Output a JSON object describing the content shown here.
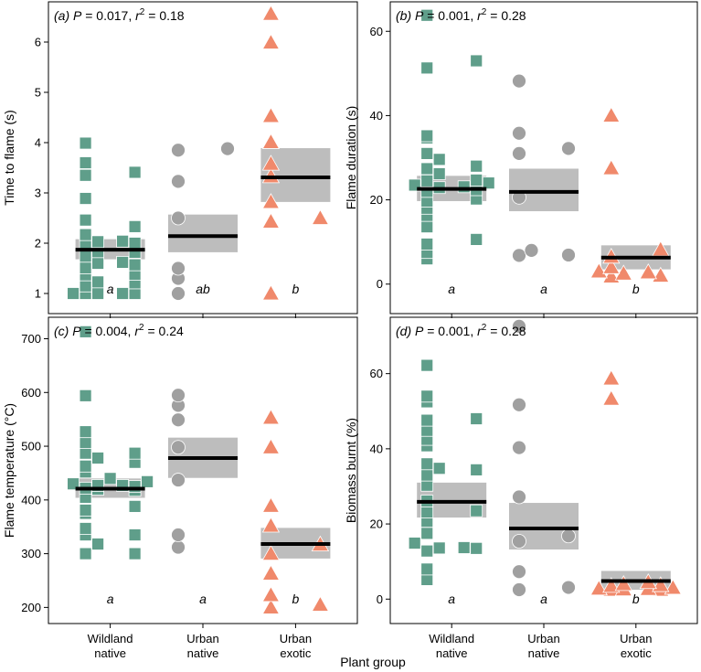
{
  "figure": {
    "xlabel": "Plant group",
    "groups": [
      "Wildland native",
      "Urban native",
      "Urban exotic"
    ],
    "group_lines": [
      [
        "Wildland",
        "native"
      ],
      [
        "Urban",
        "native"
      ],
      [
        "Urban",
        "exotic"
      ]
    ],
    "colors": {
      "wildland_native": "#5f9e8a",
      "urban_native": "#a0a0a0",
      "urban_exotic": "#f0896b",
      "letters": "#c0634b",
      "ci_band": "#bdbdbd",
      "mean_line": "#000000"
    },
    "markers": {
      "wildland_native": "square",
      "urban_native": "circle",
      "urban_exotic": "triangle"
    }
  },
  "chart_data": [
    {
      "type": "scatter",
      "panel": "(a)",
      "p_text": "P = 0.017",
      "r2_text": "r² = 0.18",
      "ylabel": "Time to flame (s)",
      "ylim": [
        0.6,
        6.8
      ],
      "yticks": [
        1,
        2,
        3,
        4,
        5,
        6
      ],
      "letters": [
        "a",
        "ab",
        "b"
      ],
      "means": [
        1.87,
        2.14,
        3.31
      ],
      "ci": [
        [
          1.68,
          2.08
        ],
        [
          1.82,
          2.57
        ],
        [
          2.82,
          3.89
        ]
      ],
      "series": [
        {
          "values": [
            1.0,
            1.0,
            1.0,
            1.0,
            1.0,
            1.15,
            1.21,
            1.23,
            1.37,
            1.38,
            1.51,
            1.57,
            1.6,
            1.62,
            1.74,
            1.82,
            1.83,
            2.0,
            2.0,
            2.03,
            2.04,
            2.17,
            2.33,
            2.46,
            2.89,
            3.35,
            3.41,
            3.6,
            3.99
          ]
        },
        {
          "values": [
            1.0,
            1.3,
            1.5,
            2.5,
            3.23,
            3.85,
            3.88
          ]
        },
        {
          "values": [
            1.0,
            2.43,
            2.5,
            2.82,
            3.33,
            3.58,
            4.01,
            4.53,
            5.99,
            6.56
          ]
        }
      ]
    },
    {
      "type": "scatter",
      "panel": "(b)",
      "p_text": "P = 0.001",
      "r2_text": "r² = 0.28",
      "ylabel": "Flame duration (s)",
      "ylim": [
        -7,
        67
      ],
      "yticks": [
        0,
        20,
        40,
        60
      ],
      "letters": [
        "a",
        "a",
        "b"
      ],
      "means": [
        22.6,
        21.9,
        6.3
      ],
      "ci": [
        [
          19.7,
          25.7
        ],
        [
          17.3,
          27.4
        ],
        [
          3.5,
          9.2
        ]
      ],
      "series": [
        {
          "values": [
            6.0,
            7.5,
            9.5,
            10.6,
            13.6,
            16.3,
            18.0,
            19.7,
            20.2,
            22.0,
            22.4,
            22.9,
            23.1,
            23.5,
            24.0,
            24.5,
            24.7,
            26.2,
            27.4,
            28.0,
            29.6,
            31.0,
            34.7,
            35.2,
            51.3,
            53.0,
            63.8
          ]
        },
        {
          "values": [
            6.8,
            6.9,
            8.0,
            20.6,
            31.0,
            32.2,
            35.8,
            48.2
          ]
        },
        {
          "values": [
            1.8,
            2.0,
            2.5,
            2.8,
            3.0,
            4.0,
            6.5,
            8.2,
            27.5,
            40.0
          ]
        }
      ]
    },
    {
      "type": "scatter",
      "panel": "(c)",
      "p_text": "P = 0.004",
      "r2_text": "r² = 0.24",
      "ylabel": "Flame temperature (°C)",
      "ylim": [
        170,
        740
      ],
      "yticks": [
        200,
        300,
        400,
        500,
        600,
        700
      ],
      "letters": [
        "a",
        "a",
        "b"
      ],
      "means": [
        421,
        478,
        318
      ],
      "ci": [
        [
          404,
          440
        ],
        [
          441,
          516
        ],
        [
          291,
          348
        ]
      ],
      "series": [
        {
          "values": [
            300,
            300,
            318,
            335,
            335,
            347,
            375,
            381,
            388,
            405,
            418,
            420,
            422,
            425,
            427,
            427,
            430,
            434,
            440,
            452,
            463,
            470,
            478,
            487,
            487,
            507,
            527,
            594,
            713
          ]
        },
        {
          "values": [
            312,
            335,
            437,
            498,
            549,
            576,
            595
          ]
        },
        {
          "values": [
            200,
            205,
            223,
            263,
            300,
            317,
            352,
            389,
            498,
            553
          ]
        }
      ]
    },
    {
      "type": "scatter",
      "panel": "(d)",
      "p_text": "P = 0.001",
      "r2_text": "r² = 0.28",
      "ylabel": "Biomass burnt (%)",
      "ylim": [
        -6.5,
        75
      ],
      "yticks": [
        0,
        20,
        40,
        60
      ],
      "letters": [
        "a",
        "a",
        "b"
      ],
      "means": [
        25.9,
        18.8,
        4.8
      ],
      "ci": [
        [
          21.7,
          31.0
        ],
        [
          13.2,
          25.6
        ],
        [
          2.5,
          7.5
        ]
      ],
      "series": [
        {
          "values": [
            5.2,
            8.0,
            12.8,
            13.5,
            13.6,
            13.7,
            14.9,
            17.5,
            20.7,
            23.2,
            23.5,
            26.1,
            30.3,
            33.0,
            34.4,
            34.8,
            36.0,
            40.8,
            42.5,
            44.9,
            47.6,
            48.0,
            52.5,
            54.0,
            62.2
          ]
        },
        {
          "values": [
            2.5,
            3.1,
            7.3,
            15.4,
            16.8,
            27.2,
            40.3,
            51.7,
            72.6
          ]
        },
        {
          "values": [
            2.5,
            2.5,
            2.6,
            2.7,
            2.8,
            3.0,
            3.5,
            3.7,
            4.0,
            4.5,
            53.3,
            58.7
          ]
        }
      ]
    }
  ]
}
